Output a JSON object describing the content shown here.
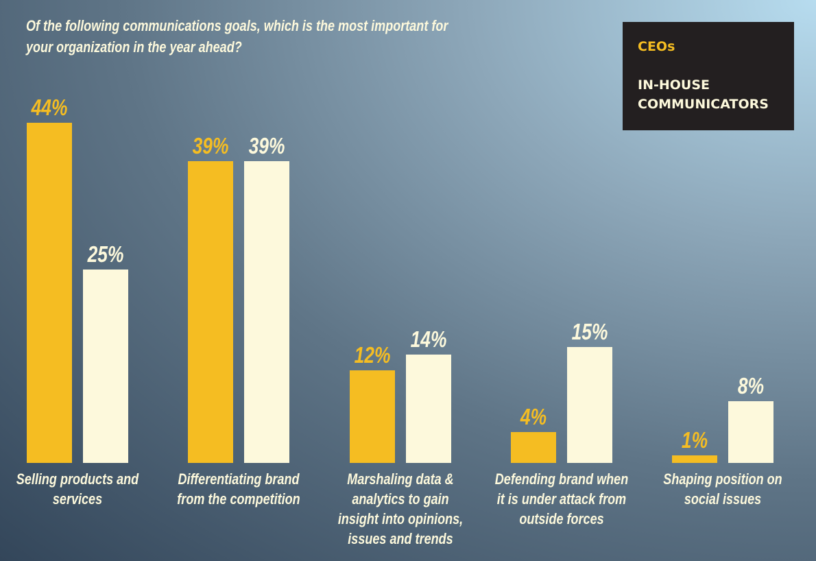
{
  "chart_data": {
    "type": "bar",
    "title": "Of the following communications goals, which is the most important for your organization in the year ahead?",
    "categories": [
      "Selling products and services",
      "Differentiating brand from the competition",
      "Marshaling data & analytics to gain insight into opinions, issues and trends",
      "Defending brand when it is under attack from outside forces",
      "Shaping position on social issues"
    ],
    "series": [
      {
        "name": "CEOs",
        "color": "#f5bd22",
        "values": [
          44,
          39,
          12,
          4,
          1
        ],
        "value_labels": [
          "44%",
          "39%",
          "12%",
          "4%",
          "1%"
        ]
      },
      {
        "name": "IN-HOUSE COMMUNICATORS",
        "color": "#fdf9dc",
        "values": [
          25,
          39,
          14,
          15,
          8
        ],
        "value_labels": [
          "25%",
          "39%",
          "14%",
          "15%",
          "8%"
        ]
      }
    ],
    "legend": "top-right"
  }
}
